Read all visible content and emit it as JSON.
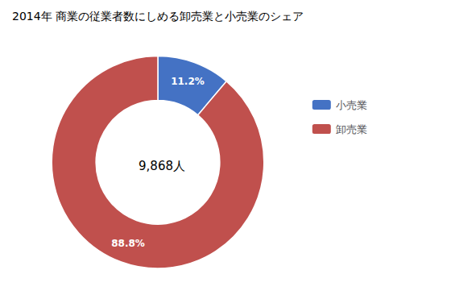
{
  "chart_data": {
    "type": "pie",
    "title": "2014年 商業の従業者数にしめる卸売業と小売業のシェア",
    "categories": [
      "小売業",
      "卸売業"
    ],
    "values": [
      11.2,
      88.8
    ],
    "value_labels": [
      "11.2%",
      "88.8%"
    ],
    "colors": [
      "#4472C4",
      "#C0504D"
    ],
    "annotations": [
      "9,868人"
    ],
    "data_labels": true,
    "legend": "right"
  }
}
